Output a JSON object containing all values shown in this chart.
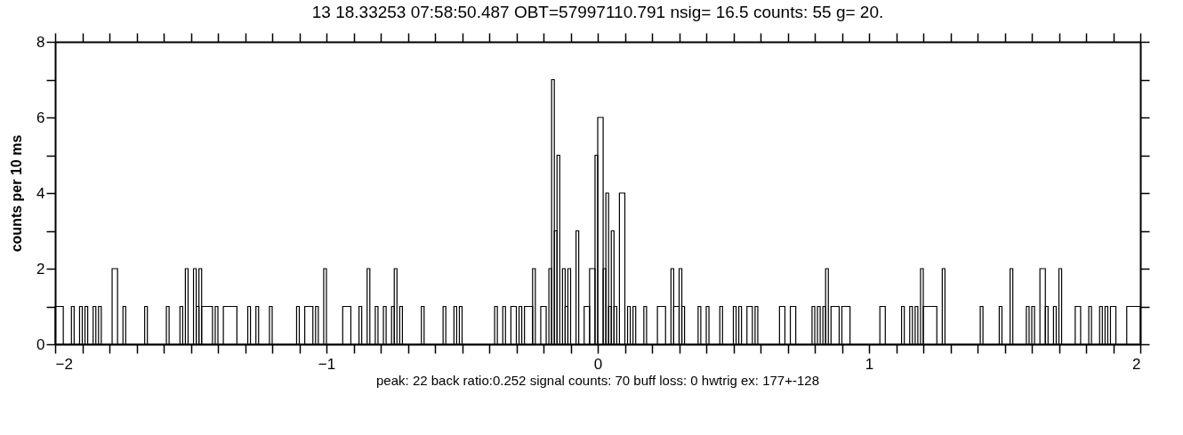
{
  "chart_data": {
    "type": "histogram",
    "title": "13   18.33253 07:58:50.487 OBT=57997110.791  nsig= 16.5 counts:    55 g=   20.",
    "ylabel": "counts per 10 ms",
    "annotations": [
      "peak: 22 back ratio:0.252  signal counts:  70  buff loss:   0  hwtrig ex:  177+-128"
    ],
    "color": "#000000",
    "bins": [
      -2.0,
      -1.97,
      -1.94,
      -1.93,
      -1.91,
      -1.9,
      -1.89,
      -1.88,
      -1.86,
      -1.85,
      -1.84,
      -1.83,
      -1.79,
      -1.77,
      -1.75,
      -1.74,
      -1.67,
      -1.66,
      -1.59,
      -1.58,
      -1.54,
      -1.53,
      -1.52,
      -1.51,
      -1.49,
      -1.48,
      -1.47,
      -1.46,
      -1.42,
      -1.41,
      -1.4,
      -1.38,
      -1.33,
      -1.29,
      -1.28,
      -1.26,
      -1.25,
      -1.21,
      -1.2,
      -1.11,
      -1.1,
      -1.08,
      -1.05,
      -1.04,
      -1.03,
      -1.01,
      -1.0,
      -0.94,
      -0.91,
      -0.88,
      -0.87,
      -0.85,
      -0.84,
      -0.82,
      -0.81,
      -0.79,
      -0.78,
      -0.76,
      -0.75,
      -0.74,
      -0.73,
      -0.72,
      -0.65,
      -0.64,
      -0.57,
      -0.56,
      -0.53,
      -0.52,
      -0.51,
      -0.5,
      -0.38,
      -0.37,
      -0.35,
      -0.34,
      -0.32,
      -0.3,
      -0.29,
      -0.28,
      -0.27,
      -0.24,
      -0.23,
      -0.21,
      -0.19,
      -0.18,
      -0.17,
      -0.16,
      -0.15,
      -0.14,
      -0.13,
      -0.12,
      -0.11,
      -0.1,
      -0.08,
      -0.07,
      -0.05,
      -0.03,
      -0.01,
      0.0,
      0.02,
      0.03,
      0.04,
      0.05,
      0.06,
      0.07,
      0.08,
      0.1,
      0.11,
      0.12,
      0.13,
      0.14,
      0.17,
      0.18,
      0.22,
      0.25,
      0.27,
      0.28,
      0.3,
      0.31,
      0.32,
      0.37,
      0.38,
      0.4,
      0.41,
      0.45,
      0.46,
      0.5,
      0.51,
      0.52,
      0.53,
      0.55,
      0.57,
      0.58,
      0.59,
      0.67,
      0.69,
      0.71,
      0.73,
      0.79,
      0.8,
      0.81,
      0.82,
      0.83,
      0.84,
      0.85,
      0.86,
      0.89,
      0.9,
      0.93,
      1.04,
      1.06,
      1.12,
      1.13,
      1.15,
      1.16,
      1.17,
      1.18,
      1.19,
      1.2,
      1.25,
      1.27,
      1.28,
      1.41,
      1.42,
      1.48,
      1.49,
      1.52,
      1.53,
      1.58,
      1.59,
      1.6,
      1.61,
      1.63,
      1.65,
      1.66,
      1.68,
      1.69,
      1.7,
      1.71,
      1.76,
      1.78,
      1.81,
      1.82,
      1.85,
      1.86,
      1.87,
      1.88,
      1.89,
      1.91,
      1.95,
      2.0
    ],
    "values": [
      1,
      0,
      1,
      0,
      1,
      0,
      1,
      0,
      1,
      0,
      1,
      0,
      2,
      0,
      1,
      0,
      1,
      0,
      1,
      0,
      1,
      0,
      2,
      0,
      2,
      1,
      2,
      1,
      0,
      1,
      0,
      1,
      0,
      1,
      0,
      1,
      0,
      1,
      0,
      1,
      0,
      1,
      0,
      1,
      0,
      2,
      0,
      1,
      0,
      1,
      0,
      2,
      0,
      1,
      0,
      1,
      0,
      1,
      2,
      0,
      1,
      0,
      1,
      0,
      1,
      0,
      1,
      0,
      1,
      0,
      1,
      0,
      1,
      0,
      1,
      0,
      1,
      0,
      1,
      2,
      0,
      1,
      0,
      2,
      7,
      3,
      5,
      0,
      2,
      1,
      2,
      0,
      3,
      0,
      1,
      2,
      5,
      6,
      2,
      4,
      1,
      3,
      1,
      0,
      4,
      0,
      1,
      0,
      1,
      0,
      1,
      0,
      1,
      0,
      2,
      1,
      2,
      1,
      0,
      1,
      0,
      1,
      0,
      1,
      0,
      1,
      0,
      1,
      0,
      1,
      0,
      1,
      0,
      1,
      0,
      1,
      0,
      1,
      0,
      1,
      0,
      1,
      2,
      0,
      1,
      0,
      1,
      0,
      1,
      0,
      1,
      0,
      1,
      0,
      1,
      0,
      2,
      1,
      0,
      2,
      0,
      1,
      0,
      1,
      0,
      2,
      0,
      1,
      0,
      1,
      0,
      2,
      1,
      0,
      1,
      0,
      2,
      0,
      1,
      0,
      1,
      0,
      1,
      0,
      1,
      0,
      1,
      0,
      1
    ],
    "xlim": [
      -2,
      2
    ],
    "xticks": [
      {
        "value": -2,
        "label": "−2"
      },
      {
        "value": -1.9,
        "label": null
      },
      {
        "value": -1.8,
        "label": null
      },
      {
        "value": -1.7,
        "label": null
      },
      {
        "value": -1.6,
        "label": null
      },
      {
        "value": -1.5,
        "label": null
      },
      {
        "value": -1.4,
        "label": null
      },
      {
        "value": -1.3,
        "label": null
      },
      {
        "value": -1.2,
        "label": null
      },
      {
        "value": -1.1,
        "label": null
      },
      {
        "value": -1,
        "label": "−1"
      },
      {
        "value": -0.9,
        "label": null
      },
      {
        "value": -0.8,
        "label": null
      },
      {
        "value": -0.7,
        "label": null
      },
      {
        "value": -0.6,
        "label": null
      },
      {
        "value": -0.5,
        "label": null
      },
      {
        "value": -0.4,
        "label": null
      },
      {
        "value": -0.3,
        "label": null
      },
      {
        "value": -0.2,
        "label": null
      },
      {
        "value": -0.1,
        "label": null
      },
      0,
      {
        "value": 0.1,
        "label": null
      },
      {
        "value": 0.2,
        "label": null
      },
      {
        "value": 0.3,
        "label": null
      },
      {
        "value": 0.4,
        "label": null
      },
      {
        "value": 0.5,
        "label": null
      },
      {
        "value": 0.6,
        "label": null
      },
      {
        "value": 0.7,
        "label": null
      },
      {
        "value": 0.8,
        "label": null
      },
      {
        "value": 0.9,
        "label": null
      },
      1,
      {
        "value": 1.1,
        "label": null
      },
      {
        "value": 1.2,
        "label": null
      },
      {
        "value": 1.3,
        "label": null
      },
      {
        "value": 1.4,
        "label": null
      },
      {
        "value": 1.5,
        "label": null
      },
      {
        "value": 1.6,
        "label": null
      },
      {
        "value": 1.7,
        "label": null
      },
      {
        "value": 1.8,
        "label": null
      },
      {
        "value": 1.9,
        "label": null
      },
      2
    ],
    "ylim": [
      0,
      8
    ],
    "yticks": [
      0,
      {
        "value": 1,
        "label": null
      },
      2,
      {
        "value": 3,
        "label": null
      },
      4,
      {
        "value": 5,
        "label": null
      },
      6,
      {
        "value": 7,
        "label": null
      },
      8
    ],
    "grid": false
  }
}
